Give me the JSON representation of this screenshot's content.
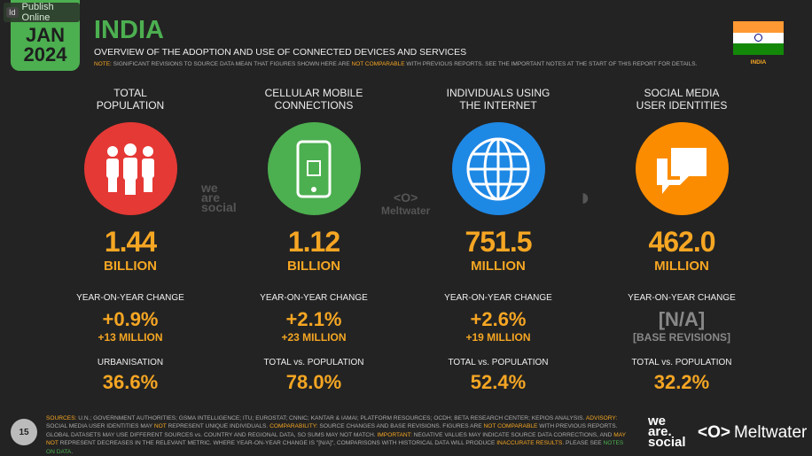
{
  "overlay": {
    "badge": "Id",
    "label": "Publish Online"
  },
  "date": {
    "month": "JAN",
    "year": "2024"
  },
  "header": {
    "title": "INDIA",
    "subtitle": "OVERVIEW OF THE ADOPTION AND USE OF CONNECTED DEVICES AND SERVICES",
    "note": [
      {
        "t": "NOTE:",
        "c": "y"
      },
      {
        "t": " SIGNIFICANT REVISIONS TO SOURCE DATA MEAN THAT FIGURES SHOWN HERE ARE ",
        "c": ""
      },
      {
        "t": "NOT COMPARABLE",
        "c": "y"
      },
      {
        "t": " WITH PREVIOUS REPORTS. SEE THE IMPORTANT NOTES AT THE START OF THIS REPORT FOR DETAILS.",
        "c": ""
      }
    ]
  },
  "flag": {
    "label": "INDIA",
    "colors": [
      "#ff9933",
      "#ffffff",
      "#138808"
    ]
  },
  "columns": [
    {
      "heading1": "TOTAL",
      "heading2": "POPULATION",
      "icon": "people-icon",
      "color": "#e53935",
      "value": "1.44",
      "unit": "BILLION",
      "change_label": "YEAR-ON-YEAR CHANGE",
      "change": "+0.9%",
      "change_abs": "+13 MILLION",
      "ratio_label": "URBANISATION",
      "ratio": "36.6%"
    },
    {
      "heading1": "CELLULAR MOBILE",
      "heading2": "CONNECTIONS",
      "icon": "mobile-phone-icon",
      "color": "#4caf50",
      "value": "1.12",
      "unit": "BILLION",
      "change_label": "YEAR-ON-YEAR CHANGE",
      "change": "+2.1%",
      "change_abs": "+23 MILLION",
      "ratio_label": "TOTAL vs. POPULATION",
      "ratio": "78.0%"
    },
    {
      "heading1": "INDIVIDUALS USING",
      "heading2": "THE INTERNET",
      "icon": "globe-icon",
      "color": "#1e88e5",
      "value": "751.5",
      "unit": "MILLION",
      "change_label": "YEAR-ON-YEAR CHANGE",
      "change": "+2.6%",
      "change_abs": "+19 MILLION",
      "ratio_label": "TOTAL vs. POPULATION",
      "ratio": "52.4%"
    },
    {
      "heading1": "SOCIAL MEDIA",
      "heading2": "USER IDENTITIES",
      "icon": "chat-bubbles-icon",
      "color": "#fb8c00",
      "value": "462.0",
      "unit": "MILLION",
      "change_label": "YEAR-ON-YEAR CHANGE",
      "change": "[N/A]",
      "change_abs": "[BASE REVISIONS]",
      "ratio_label": "TOTAL vs. POPULATION",
      "ratio": "32.2%"
    }
  ],
  "watermarks": {
    "wearesocial": "we are social",
    "meltwater": "Meltwater"
  },
  "footer": {
    "page": "15",
    "text": [
      {
        "t": "SOURCES:",
        "c": "y b"
      },
      {
        "t": " U.N.; GOVERNMENT AUTHORITIES; GSMA INTELLIGENCE; ITU; EUROSTAT; CNNIC; KANTAR & IAMAI; PLATFORM RESOURCES; OCDH; BETA RESEARCH CENTER; KEPIOS ANALYSIS. ",
        "c": ""
      },
      {
        "t": "ADVISORY:",
        "c": "y b"
      },
      {
        "t": " SOCIAL MEDIA USER IDENTITIES MAY ",
        "c": ""
      },
      {
        "t": "NOT",
        "c": "y"
      },
      {
        "t": " REPRESENT UNIQUE INDIVIDUALS. ",
        "c": ""
      },
      {
        "t": "COMPARABILITY:",
        "c": "y b"
      },
      {
        "t": " SOURCE CHANGES AND BASE REVISIONS. FIGURES ARE ",
        "c": ""
      },
      {
        "t": "NOT COMPARABLE",
        "c": "y"
      },
      {
        "t": " WITH PREVIOUS REPORTS. GLOBAL DATASETS MAY USE DIFFERENT SOURCES vs. COUNTRY AND REGIONAL DATA, SO SUMS MAY NOT MATCH. ",
        "c": ""
      },
      {
        "t": "IMPORTANT:",
        "c": "y b"
      },
      {
        "t": " NEGATIVE VALUES MAY INDICATE SOURCE DATA CORRECTIONS, AND ",
        "c": ""
      },
      {
        "t": "MAY NOT",
        "c": "y"
      },
      {
        "t": " REPRESENT DECREASES IN THE RELEVANT METRIC. WHERE YEAR-ON-YEAR CHANGE IS \"[N/A]\", COMPARISONS WITH HISTORICAL DATA WILL PRODUCE ",
        "c": ""
      },
      {
        "t": "INACCURATE RESULTS",
        "c": "y"
      },
      {
        "t": ". PLEASE SEE ",
        "c": ""
      },
      {
        "t": "NOTES ON DATA",
        "c": "g"
      },
      {
        "t": ".",
        "c": ""
      }
    ],
    "logo1": [
      "we",
      "are.",
      "social"
    ],
    "logo2": "Meltwater"
  }
}
